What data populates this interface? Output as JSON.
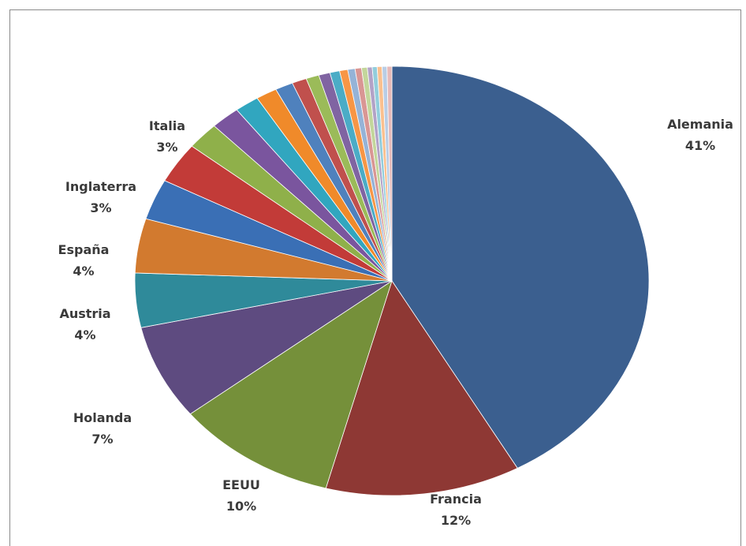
{
  "chart_data": {
    "type": "pie",
    "title": "",
    "labeled_slices": [
      {
        "label": "Alemania",
        "value_label": "41%",
        "value": 41
      },
      {
        "label": "Francia",
        "value_label": "12%",
        "value": 12
      },
      {
        "label": "EEUU",
        "value_label": "10%",
        "value": 10
      },
      {
        "label": "Holanda",
        "value_label": "7%",
        "value": 7
      },
      {
        "label": "Austria",
        "value_label": "4%",
        "value": 4
      },
      {
        "label": "España",
        "value_label": "4%",
        "value": 4
      },
      {
        "label": "Inglaterra",
        "value_label": "3%",
        "value": 3
      },
      {
        "label": "Italia",
        "value_label": "3%",
        "value": 3
      }
    ],
    "unlabeled_slice_values": [
      2.0,
      1.8,
      1.5,
      1.3,
      1.1,
      0.9,
      0.8,
      0.7,
      0.6,
      0.5,
      0.45,
      0.4,
      0.35,
      0.3,
      0.3,
      0.3,
      0.3,
      0.3
    ],
    "start_angle": "12 o'clock",
    "direction": "clockwise",
    "colors": [
      "#3b5f8f",
      "#8e3834",
      "#75903a",
      "#5e4b80",
      "#2f8a9a",
      "#d27a2f",
      "#3a6fb5",
      "#c23b38",
      "#8fb04a",
      "#7a559e",
      "#31a6bf",
      "#f08a2a",
      "#4f81bd",
      "#c0504d",
      "#9bbb59",
      "#8064a2",
      "#4bacc6",
      "#f79646",
      "#95b3d7",
      "#d99694",
      "#c3d69b",
      "#b2a2c7",
      "#92cddc",
      "#fac08f",
      "#b9cde5",
      "#e6b9b8"
    ],
    "legend": "none"
  }
}
